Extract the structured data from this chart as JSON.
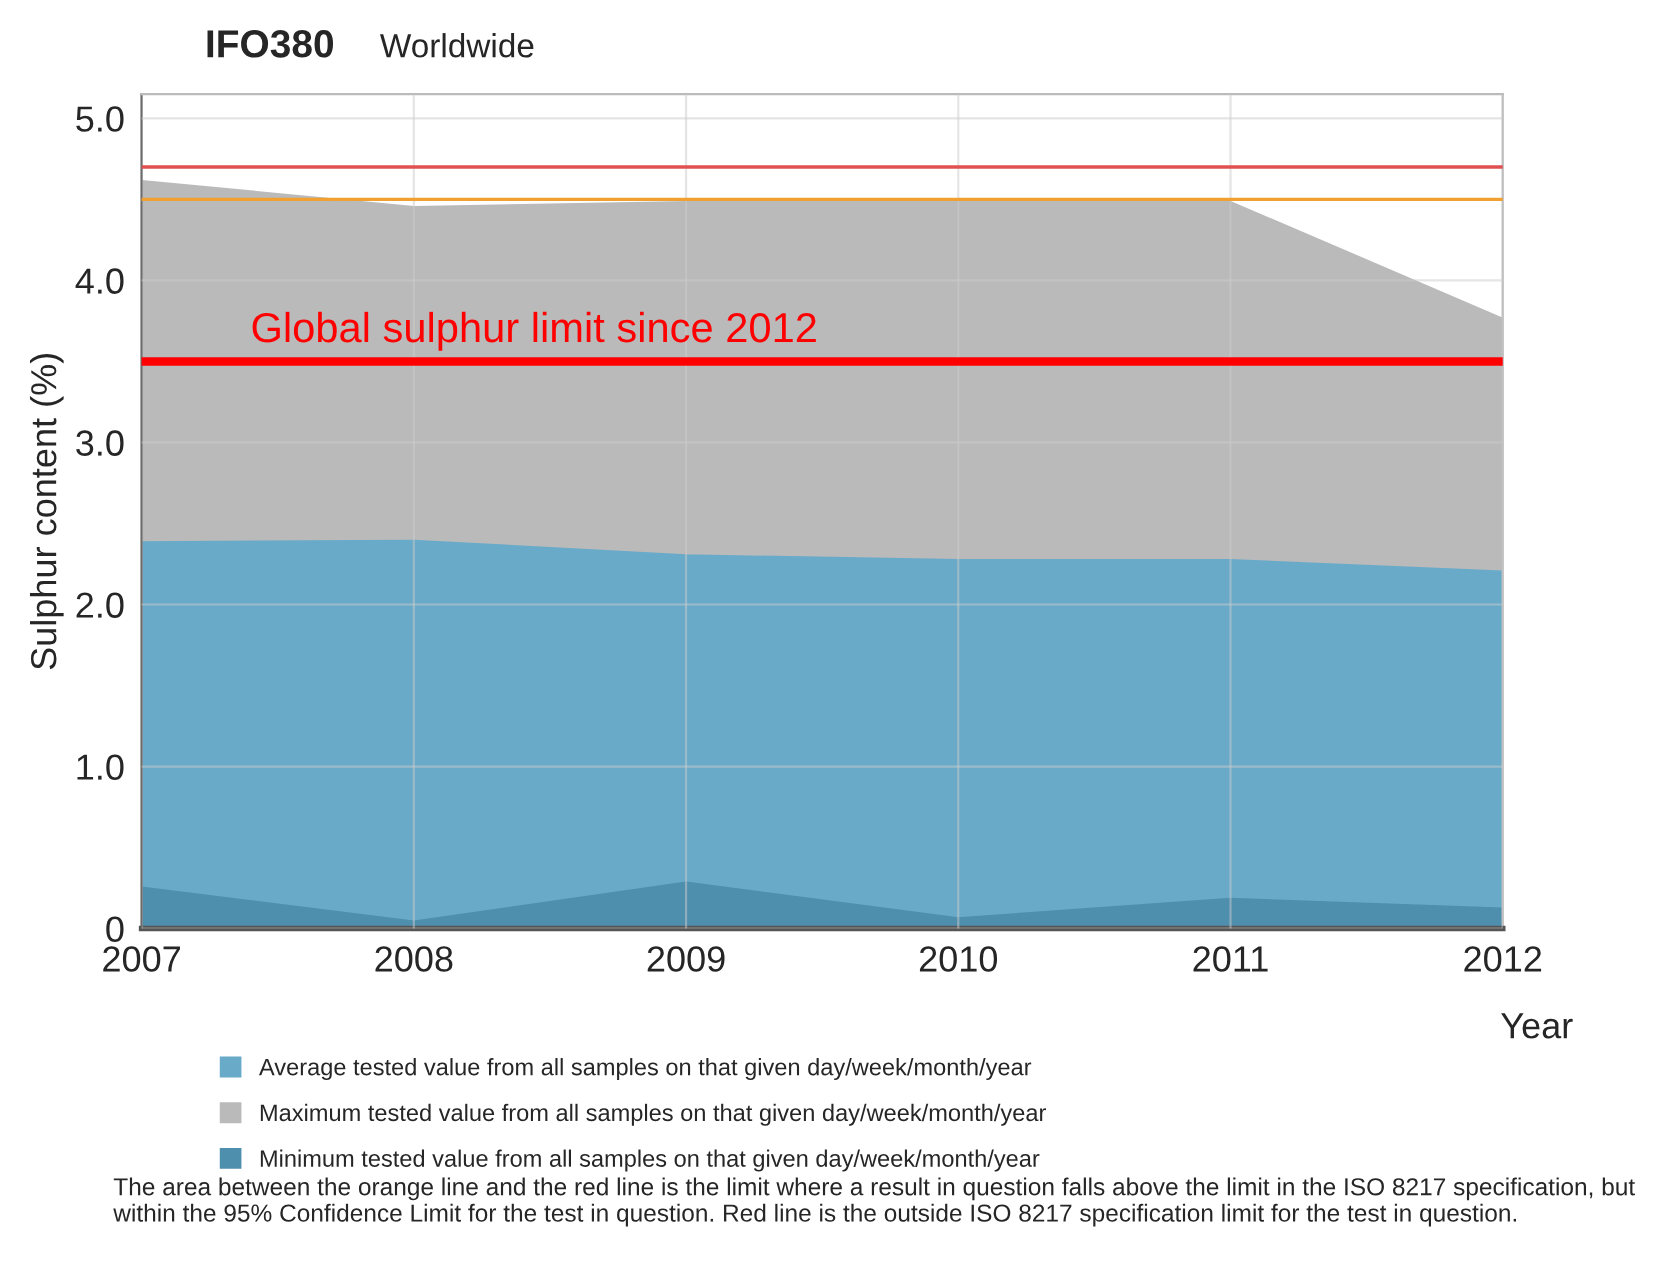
{
  "chart_data": {
    "type": "area",
    "title": "IFO380",
    "subtitle": "Worldwide",
    "xlabel": "Year",
    "ylabel": "Sulphur content (%)",
    "x": [
      2007,
      2008,
      2009,
      2010,
      2011,
      2012
    ],
    "series": [
      {
        "name": "Maximum tested value from all samples on that given day/week/month/year",
        "color": "#bababa",
        "values": [
          4.61,
          4.45,
          4.48,
          4.48,
          4.48,
          3.76
        ]
      },
      {
        "name": "Average tested value from all samples on that given day/week/month/year",
        "color": "#69aac9",
        "values": [
          2.38,
          2.39,
          2.3,
          2.27,
          2.27,
          2.2
        ]
      },
      {
        "name": "Minimum tested value from all samples on that given day/week/month/year",
        "color": "#4f8fae",
        "values": [
          0.25,
          0.04,
          0.28,
          0.06,
          0.18,
          0.12
        ]
      }
    ],
    "xlim": [
      2007,
      2012
    ],
    "xticks": [
      2007,
      2008,
      2009,
      2010,
      2011,
      2012
    ],
    "ylim": [
      0,
      5.15
    ],
    "yticks": [
      0,
      {
        "value": 1,
        "label": "1.0"
      },
      {
        "value": 2,
        "label": "2.0"
      },
      {
        "value": 3,
        "label": "3.0"
      },
      {
        "value": 4,
        "label": "4.0"
      },
      {
        "value": 5,
        "label": "5.0"
      }
    ],
    "ref_lines": [
      {
        "axis": "y",
        "value": 4.7,
        "color": "#e05050"
      },
      {
        "axis": "y",
        "value": 4.5,
        "color": "#f0a030"
      },
      {
        "axis": "y",
        "value": 3.5,
        "color": "#ff0000",
        "label": "Global sulphur limit since 2012"
      }
    ],
    "annotations": [
      "The area between the orange line and the red line is the limit where a result in question falls above the limit in the ISO 8217 specification, but within the 95% Confidence Limit for the test in question. Red line is the outside ISO 8217 specification limit for the test in question."
    ],
    "grid": true,
    "legend": "bottom"
  }
}
